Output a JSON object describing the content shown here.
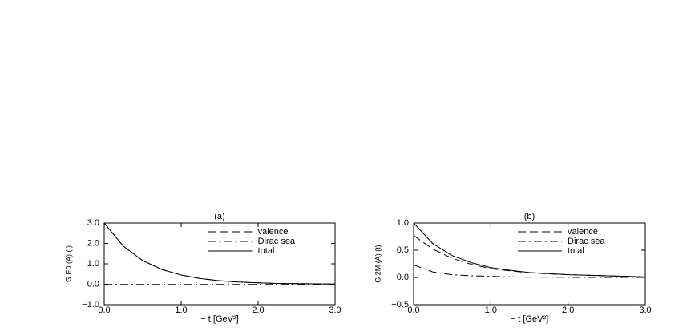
{
  "chart_data": [
    {
      "type": "line",
      "title": "(a)",
      "xlabel": "− t [GeV²]",
      "ylabel": "G E0 (A) (t)",
      "x": [
        0,
        0.25,
        0.5,
        0.75,
        1,
        1.25,
        1.5,
        1.75,
        2,
        2.25,
        2.5,
        2.75,
        3
      ],
      "series": [
        {
          "name": "valence",
          "color": "#000000",
          "style": "dashed",
          "values": [
            3.0,
            1.86,
            1.16,
            0.72,
            0.45,
            0.28,
            0.17,
            0.11,
            0.07,
            0.04,
            0.03,
            0.02,
            0.01
          ]
        },
        {
          "name": "Dirac sea",
          "color": "#000000",
          "style": "dashdot",
          "values": [
            -0.01,
            -0.01,
            -0.01,
            -0.01,
            -0.01,
            -0.01,
            -0.01,
            -0.01,
            -0.01,
            -0.01,
            -0.01,
            -0.01,
            -0.01
          ]
        },
        {
          "name": "total",
          "color": "#000000",
          "style": "solid",
          "values": [
            3.0,
            1.86,
            1.16,
            0.72,
            0.45,
            0.28,
            0.17,
            0.11,
            0.07,
            0.04,
            0.03,
            0.02,
            0.01
          ]
        }
      ],
      "xlim": [
        0,
        3
      ],
      "xticks": [
        {
          "value": 0,
          "label": "0.0"
        },
        {
          "value": 1,
          "label": "1.0"
        },
        {
          "value": 2,
          "label": "2.0"
        },
        {
          "value": 3,
          "label": "3.0"
        }
      ],
      "ylim": [
        -1,
        3
      ],
      "yticks": [
        {
          "value": -1,
          "label": "−1.0"
        },
        {
          "value": 0,
          "label": "0.0"
        },
        {
          "value": 1,
          "label": "1.0"
        },
        {
          "value": 2,
          "label": "2.0"
        },
        {
          "value": 3,
          "label": "3.0"
        }
      ],
      "legend": "upper right"
    },
    {
      "type": "line",
      "title": "(b)",
      "xlabel": "− t [GeV²]",
      "ylabel": "G 2M (A) (t)",
      "x": [
        0,
        0.25,
        0.5,
        0.75,
        1,
        1.25,
        1.5,
        1.75,
        2,
        2.25,
        2.5,
        2.75,
        3
      ],
      "series": [
        {
          "name": "valence",
          "color": "#000000",
          "style": "dashed",
          "values": [
            0.77,
            0.52,
            0.35,
            0.24,
            0.16,
            0.12,
            0.085,
            0.065,
            0.05,
            0.04,
            0.03,
            0.02,
            0.01
          ]
        },
        {
          "name": "Dirac sea",
          "color": "#000000",
          "style": "dashdot",
          "values": [
            0.23,
            0.1,
            0.05,
            0.03,
            0.02,
            0.01,
            0.005,
            0.005,
            0,
            0,
            0,
            0,
            0
          ]
        },
        {
          "name": "total",
          "color": "#000000",
          "style": "solid",
          "values": [
            1.0,
            0.62,
            0.4,
            0.27,
            0.18,
            0.13,
            0.09,
            0.07,
            0.05,
            0.04,
            0.03,
            0.02,
            0.01
          ]
        }
      ],
      "xlim": [
        0,
        3
      ],
      "xticks": [
        {
          "value": 0,
          "label": "0.0"
        },
        {
          "value": 1,
          "label": "1.0"
        },
        {
          "value": 2,
          "label": "2.0"
        },
        {
          "value": 3,
          "label": "3.0"
        }
      ],
      "ylim": [
        -0.5,
        1
      ],
      "yticks": [
        {
          "value": -0.5,
          "label": "−0.5"
        },
        {
          "value": 0,
          "label": "0.0"
        },
        {
          "value": 0.5,
          "label": "0.5"
        },
        {
          "value": 1,
          "label": "1.0"
        }
      ],
      "legend": "upper right"
    }
  ]
}
